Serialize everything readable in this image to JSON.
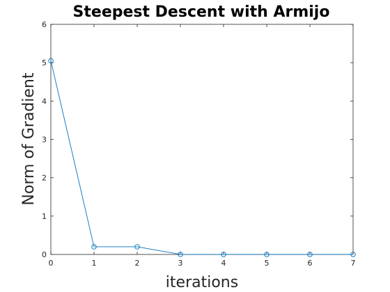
{
  "chart_data": {
    "type": "line",
    "title": "Steepest Descent with Armijo",
    "xlabel": "iterations",
    "ylabel": "Norm of Gradient",
    "xlim": [
      0,
      7
    ],
    "ylim": [
      0,
      6
    ],
    "xticks": [
      0,
      1,
      2,
      3,
      4,
      5,
      6,
      7
    ],
    "yticks": [
      0,
      1,
      2,
      3,
      4,
      5,
      6
    ],
    "grid": false,
    "marker": "circle",
    "series": [
      {
        "color": "#0072BD",
        "x": [
          0,
          1,
          2,
          3,
          4,
          5,
          6,
          7
        ],
        "y": [
          5.05,
          0.2,
          0.2,
          0.002,
          0.001,
          0.001,
          0.001,
          0.001
        ]
      }
    ]
  }
}
